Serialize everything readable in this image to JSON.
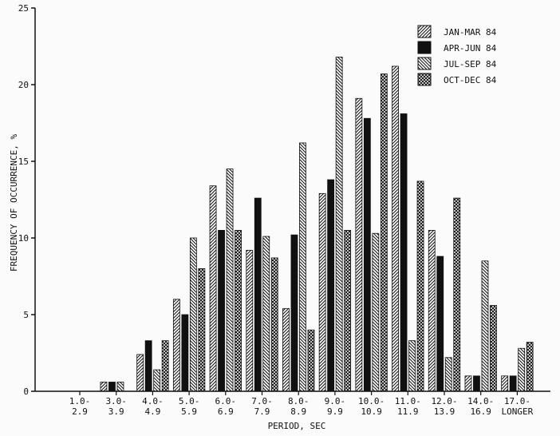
{
  "chart_data": {
    "type": "bar",
    "title": "",
    "xlabel": "PERIOD, SEC",
    "ylabel": "FREQUENCY OF OCCURRENCE, %",
    "ylim": [
      0,
      25
    ],
    "yticks": [
      "0",
      "5",
      "10",
      "15",
      "20",
      "25"
    ],
    "grid": false,
    "legend_position": "top-right",
    "categories": [
      [
        "1.0-",
        "2.9"
      ],
      [
        "3.0-",
        "3.9"
      ],
      [
        "4.0-",
        "4.9"
      ],
      [
        "5.0-",
        "5.9"
      ],
      [
        "6.0-",
        "6.9"
      ],
      [
        "7.0-",
        "7.9"
      ],
      [
        "8.0-",
        "8.9"
      ],
      [
        "9.0-",
        "9.9"
      ],
      [
        "10.0-",
        "10.9"
      ],
      [
        "11.0-",
        "11.9"
      ],
      [
        "12.0-",
        "13.9"
      ],
      [
        "14.0-",
        "16.9"
      ],
      [
        "17.0-",
        "LONGER"
      ]
    ],
    "series": [
      {
        "name": "JAN-MAR 84",
        "pattern": "hatch-right",
        "values": [
          0,
          0.6,
          2.4,
          6.0,
          13.4,
          9.2,
          5.4,
          12.9,
          19.1,
          21.2,
          10.5,
          1.0,
          1.0
        ]
      },
      {
        "name": "APR-JUN 84",
        "pattern": "solid",
        "values": [
          0,
          0.6,
          3.3,
          5.0,
          10.5,
          12.6,
          10.2,
          13.8,
          17.8,
          18.1,
          8.8,
          1.0,
          1.0
        ]
      },
      {
        "name": "JUL-SEP 84",
        "pattern": "hatch-left",
        "values": [
          0,
          0.6,
          1.4,
          10.0,
          14.5,
          10.1,
          16.2,
          21.8,
          10.3,
          3.3,
          2.2,
          8.5,
          2.8
        ]
      },
      {
        "name": "OCT-DEC 84",
        "pattern": "crosshatch",
        "values": [
          0,
          0,
          3.3,
          8.0,
          10.5,
          8.7,
          4.0,
          10.5,
          20.7,
          13.7,
          12.6,
          5.6,
          3.2
        ]
      }
    ]
  }
}
